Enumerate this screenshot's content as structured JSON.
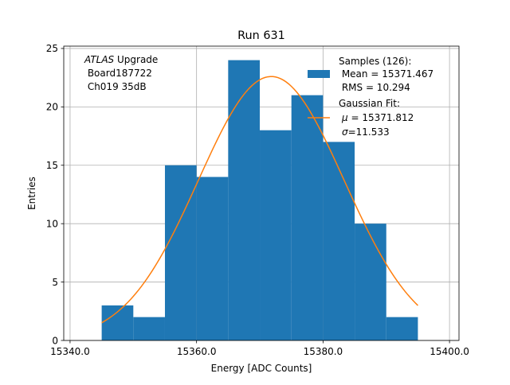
{
  "chart_data": {
    "type": "bar",
    "title": "Run 631",
    "xlabel": "Energy [ADC Counts]",
    "ylabel": "Entries",
    "xlim": [
      15339.0,
      15401.5
    ],
    "ylim": [
      0,
      25.2
    ],
    "xticks": [
      15340,
      15360,
      15380,
      15400
    ],
    "xtick_labels": [
      "15340.0",
      "15360.0",
      "15380.0",
      "15400.0"
    ],
    "yticks": [
      0,
      5,
      10,
      15,
      20,
      25
    ],
    "ytick_labels": [
      "0",
      "5",
      "10",
      "15",
      "20",
      "25"
    ],
    "grid": true,
    "annotation": {
      "line1_italic": "ATLAS",
      "line1_rest": " Upgrade",
      "line2": " Board187722",
      "line3": " Ch019 35dB"
    },
    "legend": {
      "placement": "top-right",
      "histogram_label_lines": [
        "Samples (126):",
        " Mean = 15371.467",
        " RMS = 10.294"
      ],
      "fit_label_lines": [
        "Gaussian Fit:",
        "μ = 15371.812",
        "σ=11.533"
      ],
      "mu_symbol": "μ",
      "mu_value": " = 15371.812",
      "sigma_symbol": "σ",
      "sigma_value": "=11.533"
    },
    "histogram": {
      "name": "Samples (126)",
      "color": "#1f77b4",
      "bin_edges": [
        15345,
        15350,
        15355,
        15360,
        15365,
        15370,
        15375,
        15380,
        15385,
        15390,
        15395
      ],
      "counts": [
        3,
        2,
        15,
        14,
        24,
        18,
        21,
        17,
        10,
        2
      ]
    },
    "fit": {
      "name": "Gaussian Fit",
      "color": "#ff7f0e",
      "mu": 15371.812,
      "sigma": 11.533,
      "amplitude": 22.6,
      "x_range": [
        15345,
        15395
      ]
    }
  }
}
